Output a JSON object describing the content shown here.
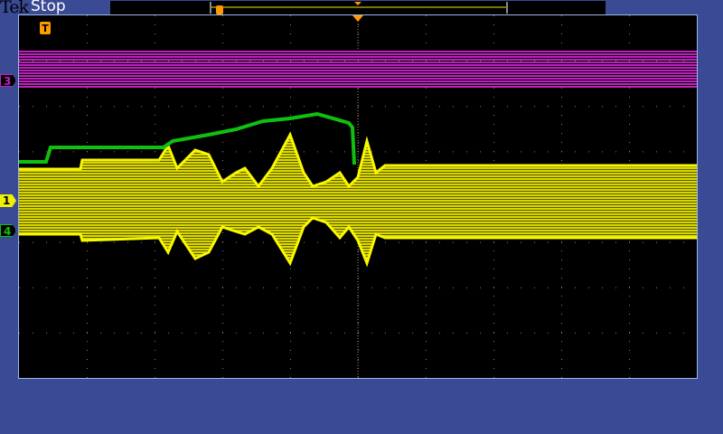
{
  "header": {
    "brand": "Tek",
    "status": "Stop"
  },
  "channels": [
    {
      "label": "3",
      "color": "#c020c0"
    },
    {
      "label": "1",
      "color": "#f0f000"
    },
    {
      "label": "4",
      "color": "#10c010"
    }
  ],
  "trigger": {
    "label": "T",
    "color": "#ff9a00"
  },
  "colors": {
    "background": "#3a4a94",
    "screen": "#000000",
    "grid": "#808080"
  },
  "grid": {
    "divisions_x": 10,
    "divisions_y": 8
  }
}
